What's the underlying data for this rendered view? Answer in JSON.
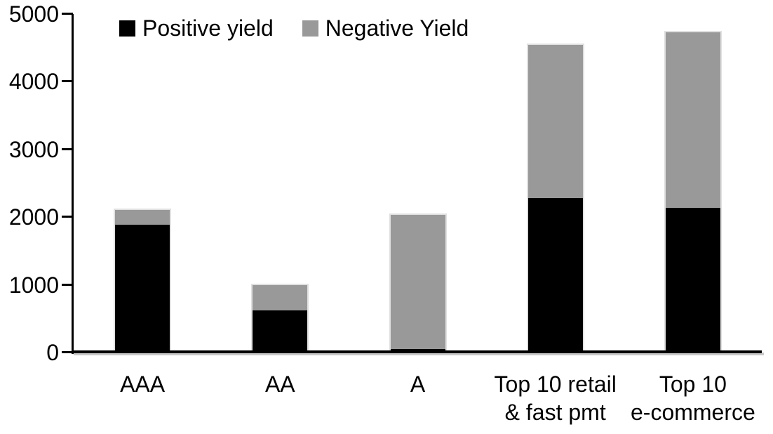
{
  "chart_data": {
    "type": "bar",
    "stacked": true,
    "title": "",
    "xlabel": "",
    "ylabel": "",
    "categories": [
      "AAA",
      "AA",
      "A",
      "Top 10 retail & fast pmt",
      "Top 10 e-commerce"
    ],
    "category_label_lines": [
      [
        "AAA"
      ],
      [
        "AA"
      ],
      [
        "A"
      ],
      [
        "Top 10 retail",
        "& fast pmt"
      ],
      [
        "Top 10",
        "e-commerce"
      ]
    ],
    "series": [
      {
        "name": "Positive yield",
        "color": "#000000",
        "values": [
          1890,
          620,
          50,
          2280,
          2140
        ]
      },
      {
        "name": "Negative Yield",
        "color": "#999999",
        "values": [
          220,
          380,
          1980,
          2260,
          2590
        ]
      }
    ],
    "totals": [
      2110,
      1000,
      2030,
      4540,
      4730
    ],
    "ylim": [
      0,
      5000
    ],
    "ytick_interval": 1000,
    "yticks": [
      "0",
      "1000",
      "2000",
      "3000",
      "4000",
      "5000"
    ],
    "grid": false,
    "legend_position": "top-inside",
    "axis_color": "#000000",
    "background_color": "#ffffff"
  }
}
